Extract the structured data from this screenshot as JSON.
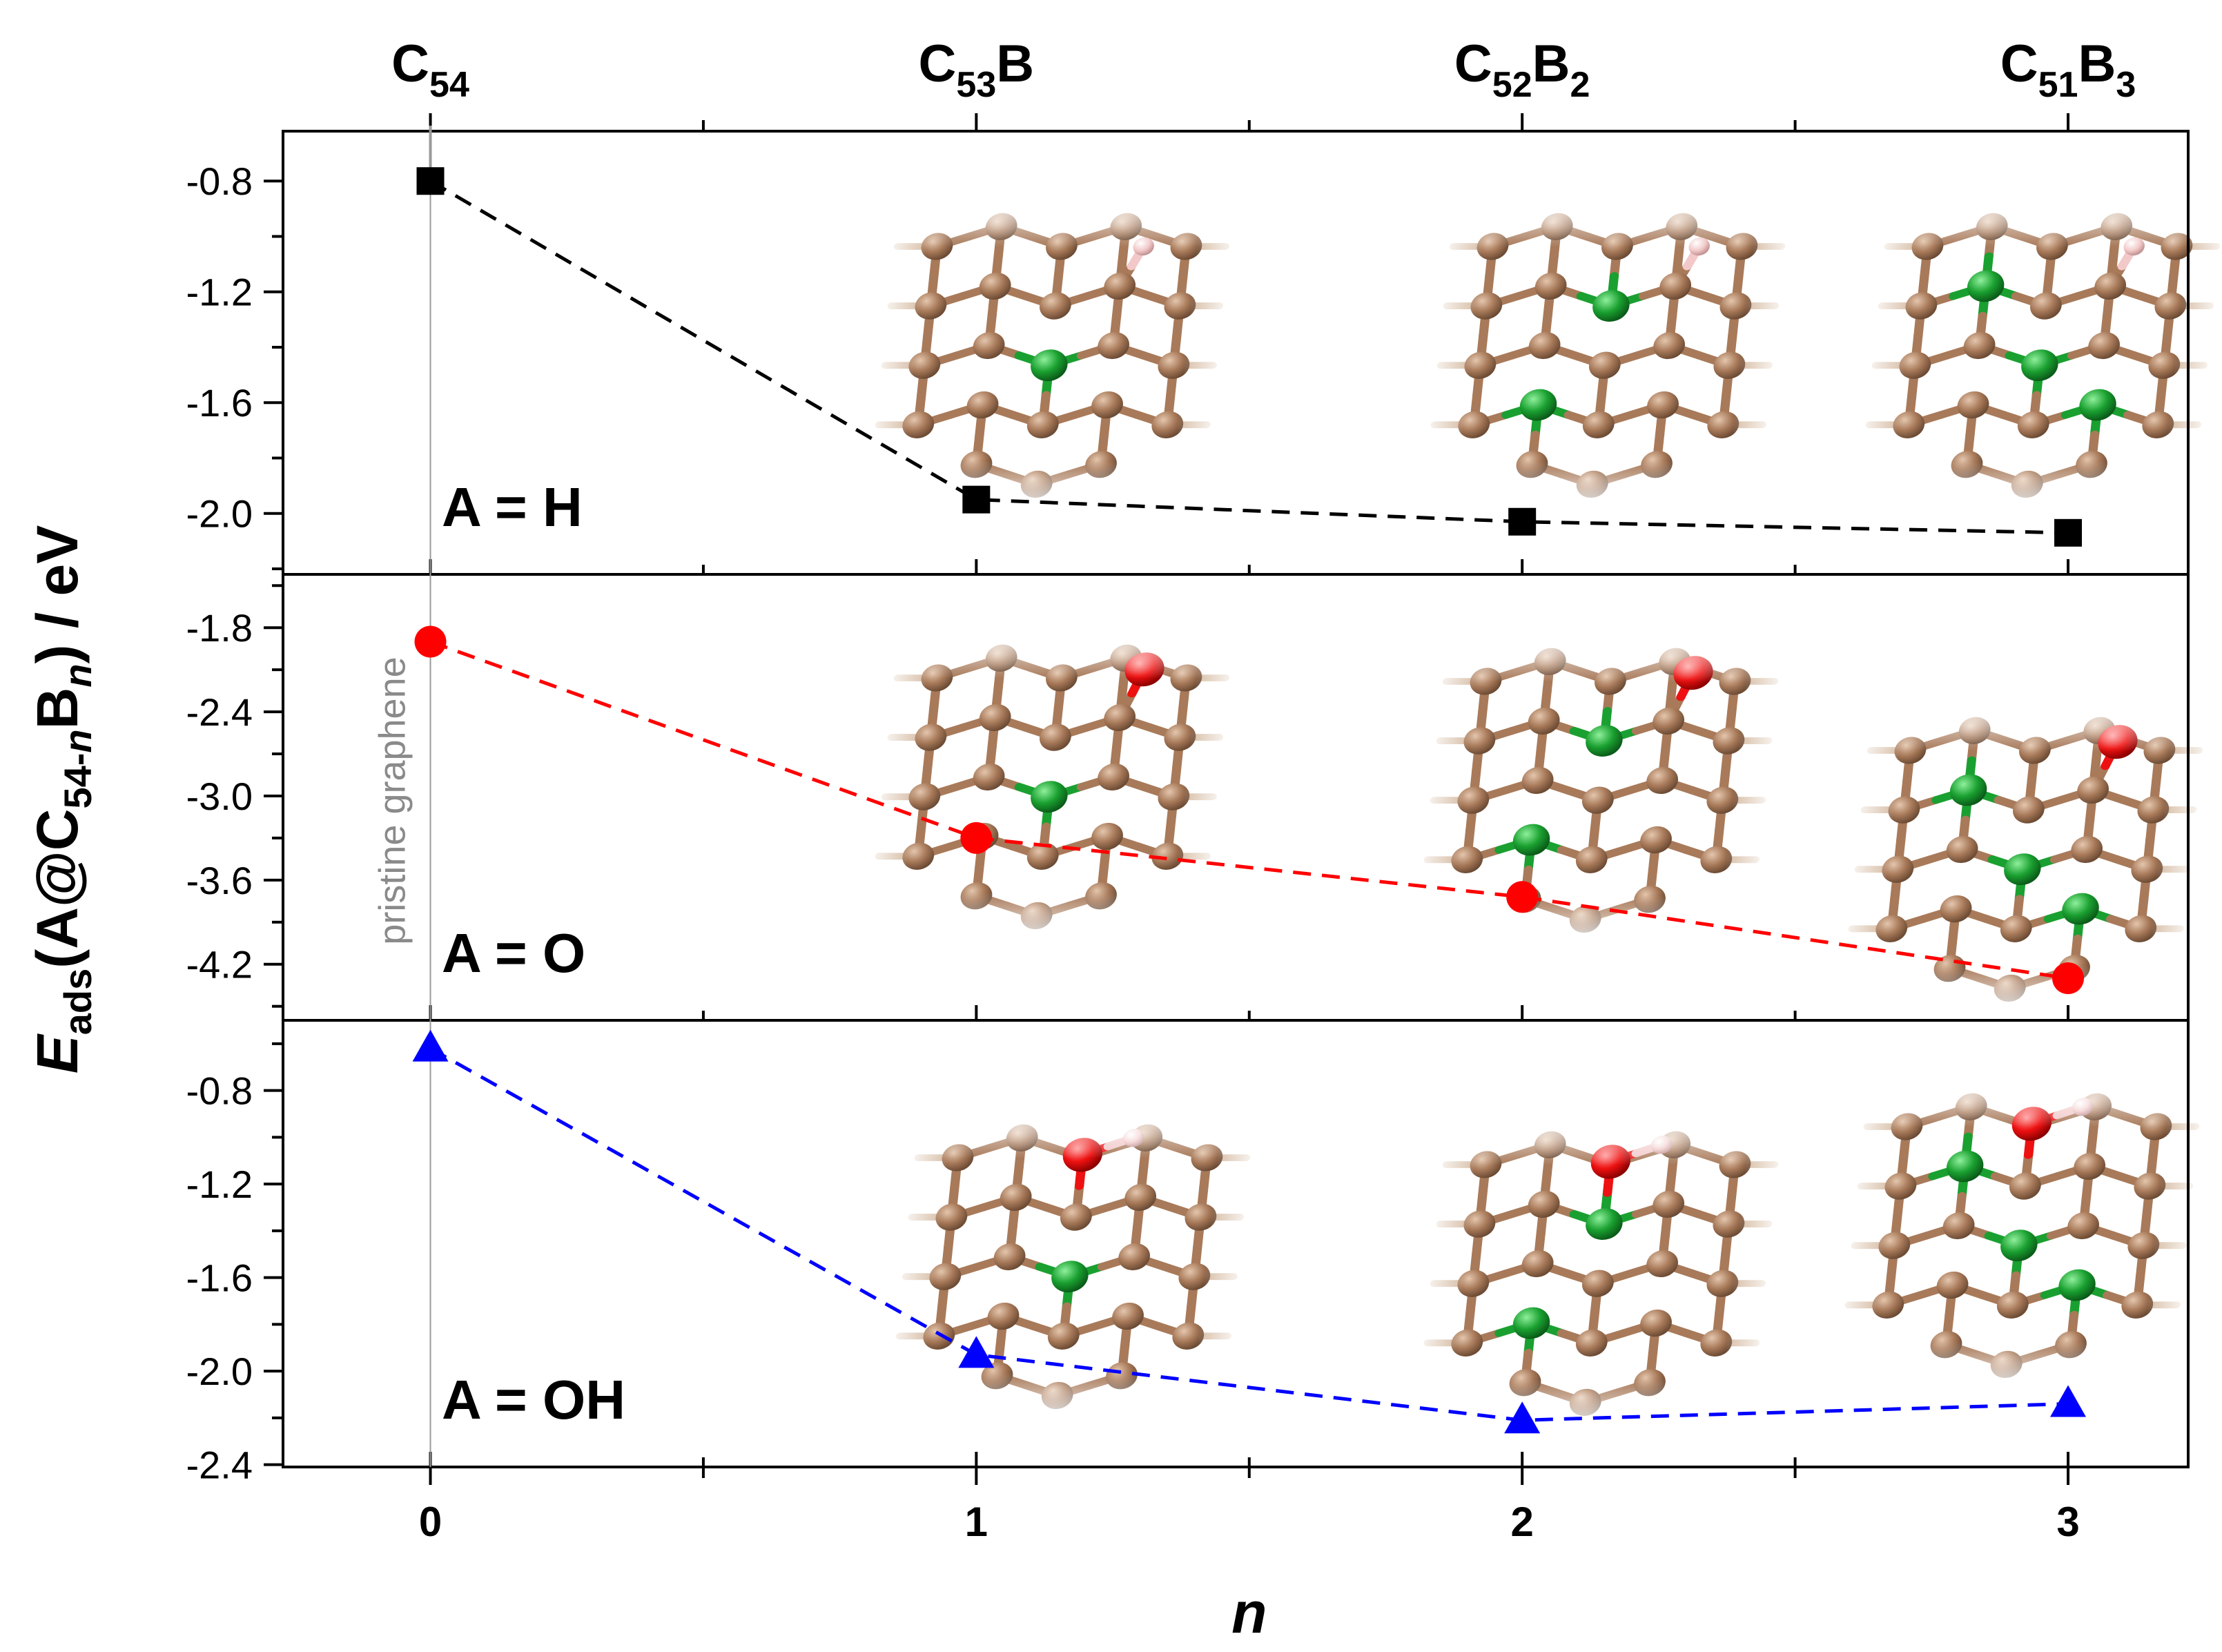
{
  "chart_data": {
    "type": "scatter",
    "x_label": "n",
    "y_label_parts": [
      "E",
      "ads",
      "(A@C",
      "54-",
      "n",
      "B",
      "n",
      ") / eV"
    ],
    "x": [
      0,
      1,
      2,
      3
    ],
    "x_ticks": [
      "0",
      "1",
      "2",
      "3"
    ],
    "xlim": [
      -0.27,
      3.22
    ],
    "top_labels": [
      {
        "x": 0,
        "parts": [
          "C",
          "54"
        ]
      },
      {
        "x": 1,
        "parts": [
          "C",
          "53",
          "B"
        ]
      },
      {
        "x": 2,
        "parts": [
          "C",
          "52",
          "B",
          "2"
        ]
      },
      {
        "x": 3,
        "parts": [
          "C",
          "51",
          "B",
          "3"
        ]
      }
    ],
    "annotation": "pristine graphene",
    "panels": [
      {
        "label": "A = H",
        "marker": "square",
        "color": "#000000",
        "values": [
          -0.8,
          -1.95,
          -2.03,
          -2.07
        ],
        "ylim": [
          -2.22,
          -0.62
        ],
        "y_ticks": [
          -0.8,
          -1.2,
          -1.6,
          -2.0
        ],
        "y_tick_labels": [
          "-0.8",
          "-1.2",
          "-1.6",
          "-2.0"
        ]
      },
      {
        "label": "A = O",
        "marker": "circle",
        "color": "#ff0000",
        "values": [
          -1.9,
          -3.3,
          -3.72,
          -4.3
        ],
        "ylim": [
          -4.6,
          -1.42
        ],
        "y_ticks": [
          -1.8,
          -2.4,
          -3.0,
          -3.6,
          -4.2
        ],
        "y_tick_labels": [
          "-1.8",
          "-2.4",
          "-3.0",
          "-3.6",
          "-4.2"
        ]
      },
      {
        "label": "A = OH",
        "marker": "triangle",
        "color": "#0000ff",
        "values": [
          -0.62,
          -1.93,
          -2.21,
          -2.14
        ],
        "ylim": [
          -2.41,
          -0.5
        ],
        "y_ticks": [
          -0.8,
          -1.2,
          -1.6,
          -2.0,
          -2.4
        ],
        "y_tick_labels": [
          "-0.8",
          "-1.2",
          "-1.6",
          "-2.0",
          "-2.4"
        ]
      }
    ]
  },
  "colors": {
    "carbon": "#a87a5a",
    "boron": "#1aa030",
    "oxygen": "#ee1111",
    "hydrogen": "#f2c8c8"
  },
  "insets": [
    {
      "id": "h-n1",
      "dopants": 1,
      "adsorbate": "H"
    },
    {
      "id": "h-n2",
      "dopants": 2,
      "adsorbate": "H"
    },
    {
      "id": "h-n3",
      "dopants": 3,
      "adsorbate": "H"
    },
    {
      "id": "o-n1",
      "dopants": 1,
      "adsorbate": "O"
    },
    {
      "id": "o-n2",
      "dopants": 2,
      "adsorbate": "O"
    },
    {
      "id": "o-n3",
      "dopants": 3,
      "adsorbate": "O"
    },
    {
      "id": "oh-n1",
      "dopants": 1,
      "adsorbate": "OH"
    },
    {
      "id": "oh-n2",
      "dopants": 2,
      "adsorbate": "OH"
    },
    {
      "id": "oh-n3",
      "dopants": 3,
      "adsorbate": "OH"
    }
  ]
}
